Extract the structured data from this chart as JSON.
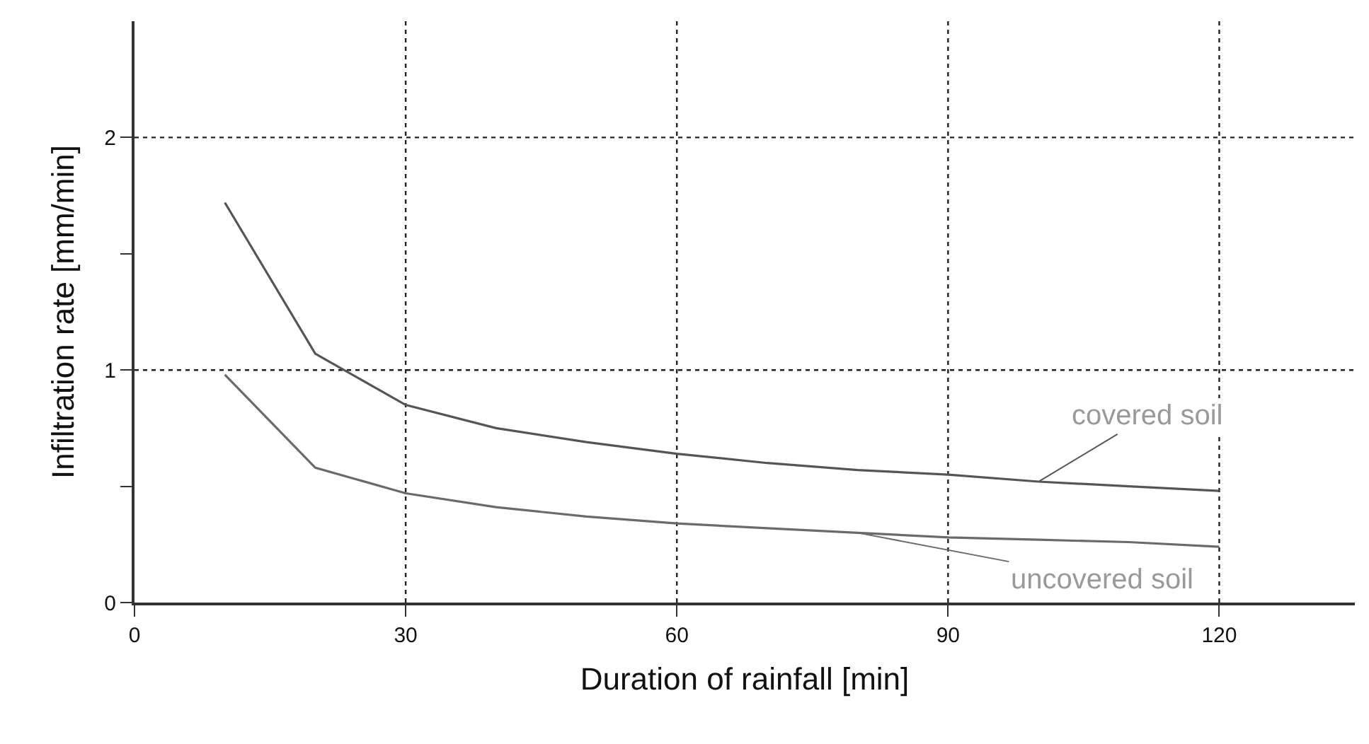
{
  "chart_data": {
    "type": "line",
    "xlabel": "Duration of rainfall [min]",
    "ylabel": "Infiltration rate [mm/min]",
    "x": [
      10,
      20,
      30,
      40,
      50,
      60,
      70,
      80,
      90,
      100,
      110,
      120
    ],
    "series": [
      {
        "name": "covered soil",
        "color": "#555555",
        "values": [
          1.72,
          1.07,
          0.85,
          0.75,
          0.69,
          0.64,
          0.6,
          0.57,
          0.55,
          0.52,
          0.5,
          0.48
        ]
      },
      {
        "name": "uncovered soil",
        "color": "#6a6a6a",
        "values": [
          0.98,
          0.58,
          0.47,
          0.41,
          0.37,
          0.34,
          0.32,
          0.3,
          0.28,
          0.27,
          0.26,
          0.24
        ]
      }
    ],
    "xlim": [
      0,
      135
    ],
    "xticks": [
      0,
      30,
      60,
      90,
      120
    ],
    "ylim": [
      0,
      2.5
    ],
    "yticks": [
      0,
      {
        "value": 0.5,
        "label": null
      },
      1,
      {
        "value": 1.5,
        "label": null
      },
      2
    ],
    "grid": true,
    "legend": false,
    "marker": "none",
    "line_style": "solid"
  }
}
